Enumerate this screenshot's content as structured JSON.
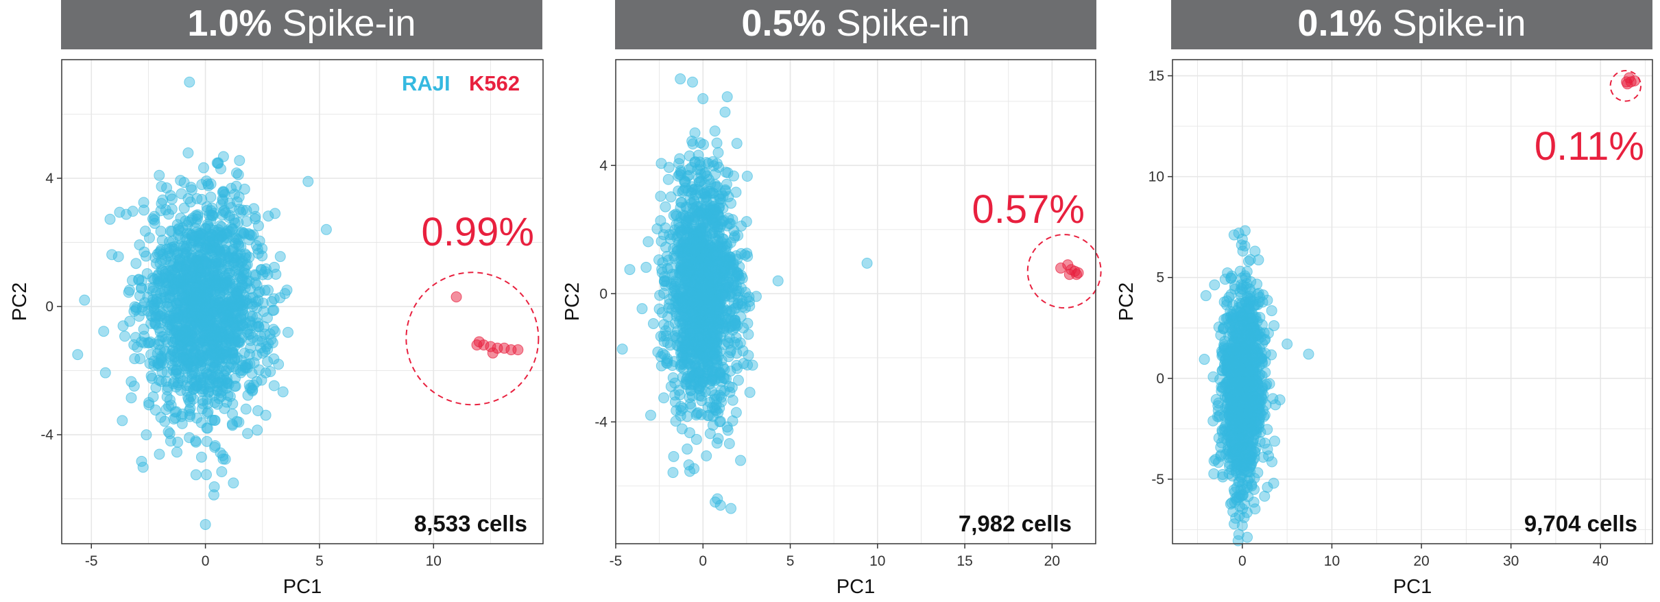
{
  "colors": {
    "raji": "#35b9e0",
    "k562": "#e8203e",
    "banner_bg": "#6d6e70",
    "grid": "#e6e6e6",
    "panel_border": "#333333"
  },
  "legend": {
    "raji_label": "RAJI",
    "k562_label": "K562"
  },
  "panels": [
    {
      "banner_bold": "1.0%",
      "banner_rest": " Spike-in",
      "percent_label": "0.99%",
      "cell_count": "8,533 cells",
      "xlabel": "PC1",
      "ylabel": "PC2"
    },
    {
      "banner_bold": "0.5%",
      "banner_rest": " Spike-in",
      "percent_label": "0.57%",
      "cell_count": "7,982 cells",
      "xlabel": "PC1",
      "ylabel": "PC2"
    },
    {
      "banner_bold": "0.1%",
      "banner_rest": " Spike-in",
      "percent_label": "0.11%",
      "cell_count": "9,704 cells",
      "xlabel": "PC1",
      "ylabel": "PC2"
    }
  ],
  "chart_data": [
    {
      "type": "scatter",
      "title": "1.0% Spike-in",
      "xlabel": "PC1",
      "ylabel": "PC2",
      "xlim": [
        -6.3,
        14.8
      ],
      "ylim": [
        -7.4,
        7.7
      ],
      "xticks": [
        -5,
        0,
        5,
        10
      ],
      "yticks": [
        -4,
        0,
        4
      ],
      "x_tick_labels": [
        "-5",
        "0",
        "5",
        "10"
      ],
      "y_tick_labels": [
        "-4",
        "0",
        "4"
      ],
      "grid": true,
      "series": [
        {
          "name": "RAJI",
          "cluster": {
            "cx": 0.0,
            "cy": 0.0,
            "sx": 1.4,
            "sy": 1.75
          },
          "outlier_points": [
            [
              -0.7,
              7.0
            ],
            [
              0.0,
              -6.8
            ],
            [
              5.3,
              2.4
            ],
            [
              4.5,
              3.9
            ],
            [
              -5.3,
              0.2
            ],
            [
              -5.6,
              -1.5
            ]
          ]
        },
        {
          "name": "K562",
          "points": [
            [
              11.0,
              0.3
            ],
            [
              11.9,
              -1.2
            ],
            [
              12.2,
              -1.2
            ],
            [
              12.5,
              -1.25
            ],
            [
              12.8,
              -1.3
            ],
            [
              13.1,
              -1.3
            ],
            [
              13.4,
              -1.35
            ],
            [
              13.7,
              -1.35
            ],
            [
              12.6,
              -1.45
            ],
            [
              12.0,
              -1.1
            ]
          ]
        }
      ],
      "annotations": [
        {
          "text": "0.99%",
          "x": 12.4,
          "y": 2.3
        },
        {
          "text": "8,533 cells",
          "position": "bottom-right"
        }
      ],
      "highlight_circle": {
        "cx": 11.7,
        "cy": -1.0,
        "r": 2.9
      }
    },
    {
      "type": "scatter",
      "title": "0.5% Spike-in",
      "xlabel": "PC1",
      "ylabel": "PC2",
      "xlim": [
        -5.0,
        22.5
      ],
      "ylim": [
        -7.8,
        7.3
      ],
      "xticks": [
        -5,
        0,
        5,
        10,
        15,
        20
      ],
      "yticks": [
        -4,
        0,
        4
      ],
      "x_tick_labels": [
        "-5",
        "0",
        "5",
        "10",
        "15",
        "20"
      ],
      "y_tick_labels": [
        "-4",
        "0",
        "4"
      ],
      "grid": true,
      "series": [
        {
          "name": "RAJI",
          "cluster": {
            "cx": 0.0,
            "cy": 0.0,
            "sx": 1.05,
            "sy": 1.9
          },
          "outlier_points": [
            [
              -1.3,
              6.7
            ],
            [
              -0.6,
              6.6
            ],
            [
              9.4,
              0.95
            ],
            [
              0.7,
              -6.5
            ],
            [
              1.6,
              -6.7
            ],
            [
              1.0,
              -6.6
            ],
            [
              4.3,
              0.4
            ]
          ]
        },
        {
          "name": "K562",
          "points": [
            [
              20.5,
              0.8
            ],
            [
              20.9,
              0.9
            ],
            [
              21.1,
              0.75
            ],
            [
              21.3,
              0.7
            ],
            [
              21.5,
              0.65
            ],
            [
              21.0,
              0.6
            ],
            [
              21.4,
              0.6
            ]
          ]
        }
      ],
      "annotations": [
        {
          "text": "0.57%",
          "x": 18.6,
          "y": 2.35
        },
        {
          "text": "7,982 cells",
          "position": "bottom-right"
        }
      ],
      "highlight_circle": {
        "cx": 20.7,
        "cy": 0.7,
        "r": 2.1
      }
    },
    {
      "type": "scatter",
      "title": "0.1% Spike-in",
      "xlabel": "PC1",
      "ylabel": "PC2",
      "xlim": [
        -7.8,
        45.8
      ],
      "ylim": [
        -8.2,
        15.8
      ],
      "xticks": [
        0,
        10,
        20,
        30,
        40
      ],
      "yticks": [
        -5,
        0,
        5,
        10,
        15
      ],
      "x_tick_labels": [
        "0",
        "10",
        "20",
        "30",
        "40"
      ],
      "y_tick_labels": [
        "-5",
        "0",
        "5",
        "10",
        "15"
      ],
      "grid": true,
      "series": [
        {
          "name": "RAJI",
          "cluster": {
            "cx": 0.0,
            "cy": -0.5,
            "sx": 1.25,
            "sy": 2.6
          },
          "outlier_points": [
            [
              -0.4,
              7.2
            ],
            [
              0.0,
              6.9
            ],
            [
              0.0,
              -7.3
            ],
            [
              0.2,
              -6.9
            ],
            [
              7.4,
              1.2
            ],
            [
              5.0,
              1.7
            ],
            [
              3.5,
              -5.2
            ]
          ]
        },
        {
          "name": "K562",
          "points": [
            [
              43.0,
              14.6
            ],
            [
              43.4,
              14.7
            ],
            [
              43.8,
              14.75
            ],
            [
              43.2,
              14.9
            ],
            [
              42.9,
              14.7
            ]
          ]
        }
      ],
      "annotations": [
        {
          "text": "0.11%",
          "x": 37.0,
          "y": 11.2
        },
        {
          "text": "9,704 cells",
          "position": "bottom-right"
        }
      ],
      "highlight_circle": {
        "cx": 42.8,
        "cy": 14.5,
        "r": 1.7
      }
    }
  ]
}
